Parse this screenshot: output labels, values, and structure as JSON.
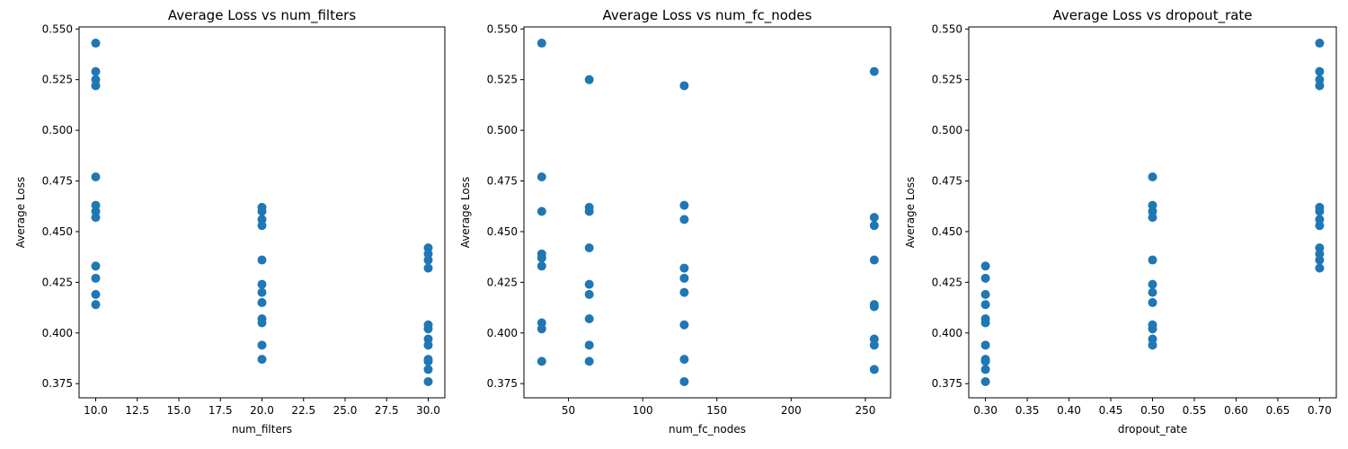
{
  "chart_data": [
    {
      "type": "scatter",
      "title": "Average Loss vs num_filters",
      "xlabel": "num_filters",
      "ylabel": "Average Loss",
      "color": "#1f77b4",
      "xlim": [
        9.0,
        31.0
      ],
      "ylim": [
        0.368,
        0.551
      ],
      "xticks": [
        10.0,
        12.5,
        15.0,
        17.5,
        20.0,
        22.5,
        25.0,
        27.5,
        30.0
      ],
      "xtick_labels": [
        "10.0",
        "12.5",
        "15.0",
        "17.5",
        "20.0",
        "22.5",
        "25.0",
        "27.5",
        "30.0"
      ],
      "yticks": [
        0.375,
        0.4,
        0.425,
        0.45,
        0.475,
        0.5,
        0.525,
        0.55
      ],
      "ytick_labels": [
        "0.375",
        "0.400",
        "0.425",
        "0.450",
        "0.475",
        "0.500",
        "0.525",
        "0.550"
      ],
      "points": [
        [
          10,
          0.543
        ],
        [
          10,
          0.529
        ],
        [
          10,
          0.525
        ],
        [
          10,
          0.522
        ],
        [
          10,
          0.477
        ],
        [
          10,
          0.463
        ],
        [
          10,
          0.46
        ],
        [
          10,
          0.457
        ],
        [
          10,
          0.433
        ],
        [
          10,
          0.427
        ],
        [
          10,
          0.419
        ],
        [
          10,
          0.414
        ],
        [
          20,
          0.462
        ],
        [
          20,
          0.46
        ],
        [
          20,
          0.456
        ],
        [
          20,
          0.453
        ],
        [
          20,
          0.436
        ],
        [
          20,
          0.424
        ],
        [
          20,
          0.42
        ],
        [
          20,
          0.415
        ],
        [
          20,
          0.407
        ],
        [
          20,
          0.405
        ],
        [
          20,
          0.394
        ],
        [
          20,
          0.387
        ],
        [
          30,
          0.442
        ],
        [
          30,
          0.439
        ],
        [
          30,
          0.436
        ],
        [
          30,
          0.432
        ],
        [
          30,
          0.404
        ],
        [
          30,
          0.402
        ],
        [
          30,
          0.397
        ],
        [
          30,
          0.394
        ],
        [
          30,
          0.387
        ],
        [
          30,
          0.386
        ],
        [
          30,
          0.382
        ],
        [
          30,
          0.376
        ]
      ]
    },
    {
      "type": "scatter",
      "title": "Average Loss vs num_fc_nodes",
      "xlabel": "num_fc_nodes",
      "ylabel": "Average Loss",
      "color": "#1f77b4",
      "xlim": [
        20.0,
        267.0
      ],
      "ylim": [
        0.368,
        0.551
      ],
      "xticks": [
        50,
        100,
        150,
        200,
        250
      ],
      "xtick_labels": [
        "50",
        "100",
        "150",
        "200",
        "250"
      ],
      "yticks": [
        0.375,
        0.4,
        0.425,
        0.45,
        0.475,
        0.5,
        0.525,
        0.55
      ],
      "ytick_labels": [
        "0.375",
        "0.400",
        "0.425",
        "0.450",
        "0.475",
        "0.500",
        "0.525",
        "0.550"
      ],
      "points": [
        [
          32,
          0.543
        ],
        [
          32,
          0.477
        ],
        [
          32,
          0.46
        ],
        [
          32,
          0.439
        ],
        [
          32,
          0.437
        ],
        [
          32,
          0.433
        ],
        [
          32,
          0.405
        ],
        [
          32,
          0.402
        ],
        [
          32,
          0.386
        ],
        [
          64,
          0.525
        ],
        [
          64,
          0.462
        ],
        [
          64,
          0.46
        ],
        [
          64,
          0.442
        ],
        [
          64,
          0.424
        ],
        [
          64,
          0.419
        ],
        [
          64,
          0.407
        ],
        [
          64,
          0.394
        ],
        [
          64,
          0.386
        ],
        [
          128,
          0.522
        ],
        [
          128,
          0.463
        ],
        [
          128,
          0.456
        ],
        [
          128,
          0.432
        ],
        [
          128,
          0.427
        ],
        [
          128,
          0.42
        ],
        [
          128,
          0.404
        ],
        [
          128,
          0.387
        ],
        [
          128,
          0.376
        ],
        [
          256,
          0.529
        ],
        [
          256,
          0.457
        ],
        [
          256,
          0.453
        ],
        [
          256,
          0.436
        ],
        [
          256,
          0.414
        ],
        [
          256,
          0.413
        ],
        [
          256,
          0.397
        ],
        [
          256,
          0.394
        ],
        [
          256,
          0.382
        ]
      ]
    },
    {
      "type": "scatter",
      "title": "Average Loss vs dropout_rate",
      "xlabel": "dropout_rate",
      "ylabel": "Average Loss",
      "color": "#1f77b4",
      "xlim": [
        0.28,
        0.72
      ],
      "ylim": [
        0.368,
        0.551
      ],
      "xticks": [
        0.3,
        0.35,
        0.4,
        0.45,
        0.5,
        0.55,
        0.6,
        0.65,
        0.7
      ],
      "xtick_labels": [
        "0.30",
        "0.35",
        "0.40",
        "0.45",
        "0.50",
        "0.55",
        "0.60",
        "0.65",
        "0.70"
      ],
      "yticks": [
        0.375,
        0.4,
        0.425,
        0.45,
        0.475,
        0.5,
        0.525,
        0.55
      ],
      "ytick_labels": [
        "0.375",
        "0.400",
        "0.425",
        "0.450",
        "0.475",
        "0.500",
        "0.525",
        "0.550"
      ],
      "points": [
        [
          0.3,
          0.433
        ],
        [
          0.3,
          0.427
        ],
        [
          0.3,
          0.419
        ],
        [
          0.3,
          0.414
        ],
        [
          0.3,
          0.407
        ],
        [
          0.3,
          0.405
        ],
        [
          0.3,
          0.394
        ],
        [
          0.3,
          0.387
        ],
        [
          0.3,
          0.386
        ],
        [
          0.3,
          0.382
        ],
        [
          0.3,
          0.376
        ],
        [
          0.5,
          0.477
        ],
        [
          0.5,
          0.463
        ],
        [
          0.5,
          0.46
        ],
        [
          0.5,
          0.457
        ],
        [
          0.5,
          0.436
        ],
        [
          0.5,
          0.424
        ],
        [
          0.5,
          0.42
        ],
        [
          0.5,
          0.415
        ],
        [
          0.5,
          0.404
        ],
        [
          0.5,
          0.402
        ],
        [
          0.5,
          0.397
        ],
        [
          0.5,
          0.394
        ],
        [
          0.7,
          0.543
        ],
        [
          0.7,
          0.529
        ],
        [
          0.7,
          0.525
        ],
        [
          0.7,
          0.522
        ],
        [
          0.7,
          0.462
        ],
        [
          0.7,
          0.46
        ],
        [
          0.7,
          0.456
        ],
        [
          0.7,
          0.453
        ],
        [
          0.7,
          0.442
        ],
        [
          0.7,
          0.439
        ],
        [
          0.7,
          0.436
        ],
        [
          0.7,
          0.432
        ]
      ]
    }
  ]
}
